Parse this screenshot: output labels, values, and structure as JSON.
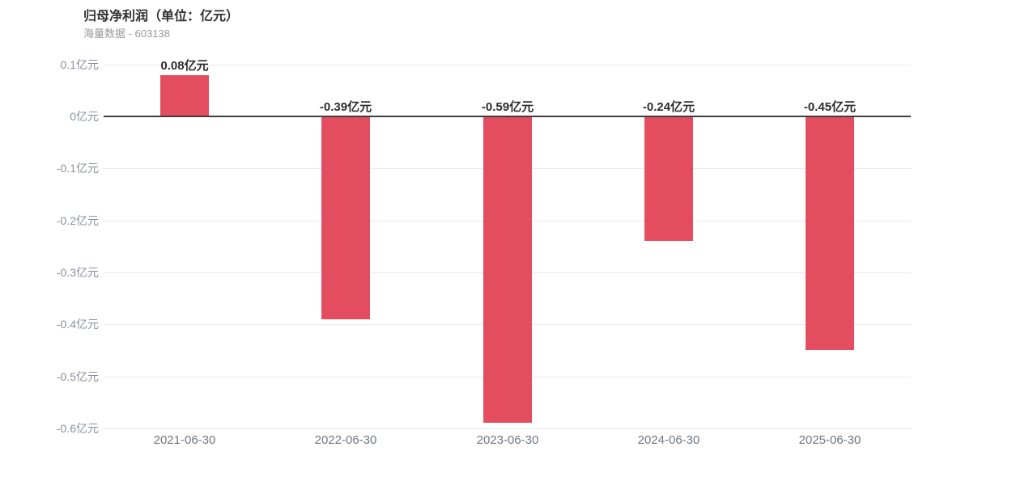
{
  "header": {
    "title": "归母净利润（单位：亿元）",
    "subtitle": "海量数据 - 603138"
  },
  "chart_data": {
    "type": "bar",
    "title": "归母净利润（单位：亿元）",
    "subtitle": "海量数据 - 603138",
    "unit": "亿元",
    "categories": [
      "2021-06-30",
      "2022-06-30",
      "2023-06-30",
      "2024-06-30",
      "2025-06-30"
    ],
    "values": [
      0.08,
      -0.39,
      -0.59,
      -0.24,
      -0.45
    ],
    "value_labels": [
      "0.08亿元",
      "-0.39亿元",
      "-0.59亿元",
      "-0.24亿元",
      "-0.45亿元"
    ],
    "ylim": [
      -0.6,
      0.1
    ],
    "yticks": [
      0.1,
      0,
      -0.1,
      -0.2,
      -0.3,
      -0.4,
      -0.5,
      -0.6
    ],
    "ytick_labels": [
      "0.1亿元",
      "0亿元",
      "-0.1亿元",
      "-0.2亿元",
      "-0.3亿元",
      "-0.4亿元",
      "-0.5亿元",
      "-0.6亿元"
    ],
    "grid": true,
    "legend": "none",
    "colors": {
      "bar": "#e44c5f",
      "grid_line": "#e7eaf0",
      "zero_line": "#3f3f3f",
      "y_label": "#8a909a",
      "x_label": "#6f767f",
      "value_label": "#2d2d2d",
      "title": "#333333",
      "subtitle": "#999999",
      "background": "#ffffff"
    }
  }
}
